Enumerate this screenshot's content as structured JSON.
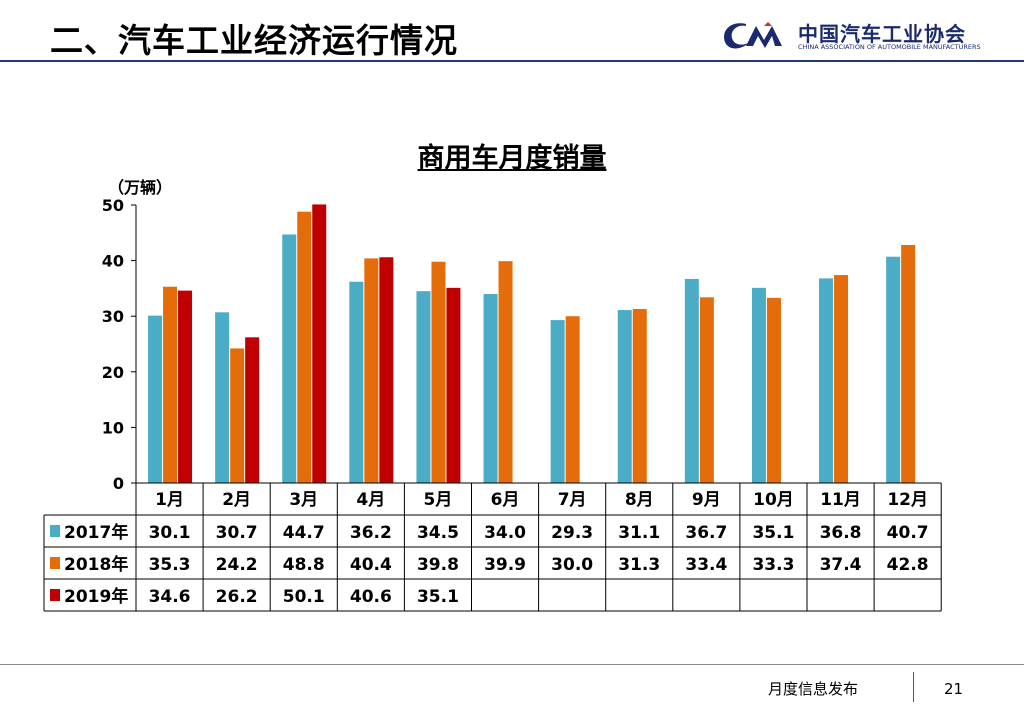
{
  "slide": {
    "title": "二、汽车工业经济运行情况",
    "logo_cn": "中国汽车工业协会",
    "logo_en": "CHINA ASSOCIATION OF AUTOMOBILE MANUFACTURERS",
    "footer_text": "月度信息发布",
    "page_number": "21"
  },
  "chart_data": {
    "type": "bar",
    "title": "商用车月度销量",
    "unit_label": "（万辆）",
    "categories": [
      "1月",
      "2月",
      "3月",
      "4月",
      "5月",
      "6月",
      "7月",
      "8月",
      "9月",
      "10月",
      "11月",
      "12月"
    ],
    "series": [
      {
        "name": "2017年",
        "color": "#4bacc6",
        "values": [
          30.1,
          30.7,
          44.7,
          36.2,
          34.5,
          34.0,
          29.3,
          31.1,
          36.7,
          35.1,
          36.8,
          40.7
        ],
        "labels": [
          "30.1",
          "30.7",
          "44.7",
          "36.2",
          "34.5",
          "34.0",
          "29.3",
          "31.1",
          "36.7",
          "35.1",
          "36.8",
          "40.7"
        ]
      },
      {
        "name": "2018年",
        "color": "#e46c0a",
        "values": [
          35.3,
          24.2,
          48.8,
          40.4,
          39.8,
          39.9,
          30.0,
          31.3,
          33.4,
          33.3,
          37.4,
          42.8
        ],
        "labels": [
          "35.3",
          "24.2",
          "48.8",
          "40.4",
          "39.8",
          "39.9",
          "30.0",
          "31.3",
          "33.4",
          "33.3",
          "37.4",
          "42.8"
        ]
      },
      {
        "name": "2019年",
        "color": "#c00000",
        "values": [
          34.6,
          26.2,
          50.1,
          40.6,
          35.1,
          null,
          null,
          null,
          null,
          null,
          null,
          null
        ],
        "labels": [
          "34.6",
          "26.2",
          "50.1",
          "40.6",
          "35.1",
          "",
          "",
          "",
          "",
          "",
          "",
          ""
        ]
      }
    ],
    "yticks": [
      "0",
      "10",
      "20",
      "30",
      "40",
      "50"
    ],
    "ylim": [
      0,
      50
    ],
    "grid": false,
    "legend": "data-table"
  }
}
